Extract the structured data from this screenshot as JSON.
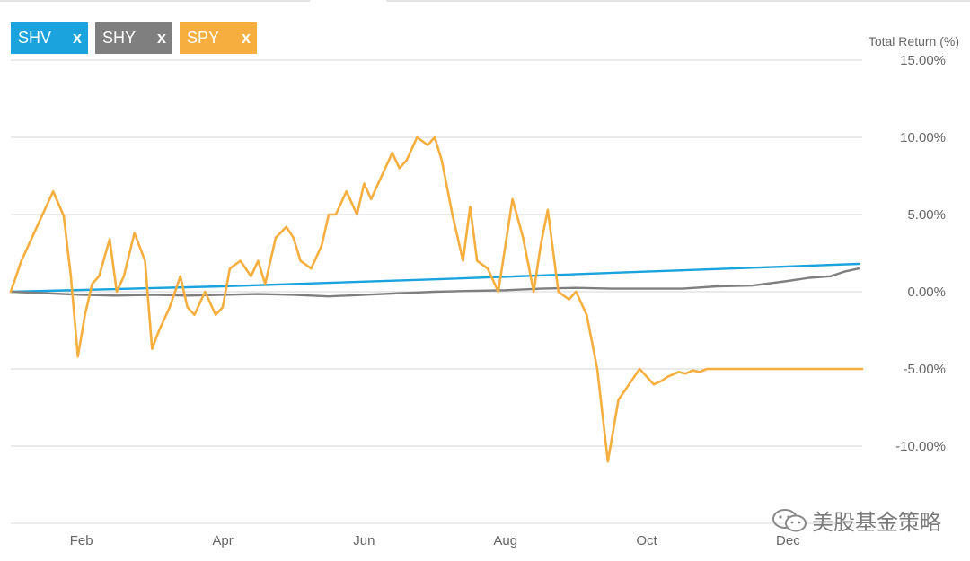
{
  "legend": [
    {
      "label": "SHV",
      "remove": "x",
      "color": "#1aa3dd"
    },
    {
      "label": "SHY",
      "remove": "x",
      "color": "#7f7f7f"
    },
    {
      "label": "SPY",
      "remove": "x",
      "color": "#f6ae3f"
    }
  ],
  "watermark": "美股基金策略",
  "chart_data": {
    "type": "line",
    "ylabel": "Total Return (%)",
    "ylim": [
      -15,
      15
    ],
    "y_ticks": [
      15,
      10,
      5,
      0,
      -5,
      -10
    ],
    "y_tick_labels": [
      "15.00%",
      "10.00%",
      "5.00%",
      "0.00%",
      "-5.00%",
      "-10.00%"
    ],
    "x_ticks": [
      1.0,
      3.0,
      5.0,
      7.0,
      9.0,
      11.0
    ],
    "x_tick_labels": [
      "Feb",
      "Apr",
      "Jun",
      "Aug",
      "Oct",
      "Dec"
    ],
    "xlim": [
      0,
      12.05
    ],
    "grid": true,
    "legend_position": "top-left",
    "series": [
      {
        "name": "SHV",
        "color": "#1aa3dd",
        "x": [
          0,
          3,
          6,
          9,
          12
        ],
        "y": [
          0.0,
          0.35,
          0.8,
          1.3,
          1.8
        ]
      },
      {
        "name": "SHY",
        "color": "#7f7f7f",
        "x": [
          0,
          0.5,
          1.0,
          1.5,
          2.0,
          2.5,
          3.0,
          3.5,
          4.0,
          4.5,
          5.0,
          5.5,
          6.0,
          6.5,
          7.0,
          7.5,
          8.0,
          8.5,
          9.0,
          9.5,
          10.0,
          10.5,
          11.0,
          11.3,
          11.6,
          11.8,
          12.0
        ],
        "y": [
          0.0,
          -0.1,
          -0.2,
          -0.25,
          -0.2,
          -0.25,
          -0.2,
          -0.15,
          -0.2,
          -0.3,
          -0.2,
          -0.1,
          0.0,
          0.05,
          0.1,
          0.2,
          0.25,
          0.2,
          0.2,
          0.2,
          0.35,
          0.4,
          0.7,
          0.9,
          1.0,
          1.3,
          1.5
        ]
      },
      {
        "name": "SPY",
        "color": "#f6ae3f",
        "x": [
          0.0,
          0.15,
          0.3,
          0.45,
          0.6,
          0.75,
          0.85,
          0.95,
          1.05,
          1.15,
          1.25,
          1.4,
          1.5,
          1.6,
          1.75,
          1.9,
          2.0,
          2.1,
          2.25,
          2.4,
          2.5,
          2.6,
          2.75,
          2.9,
          3.0,
          3.1,
          3.25,
          3.4,
          3.5,
          3.6,
          3.75,
          3.9,
          4.0,
          4.1,
          4.25,
          4.4,
          4.5,
          4.6,
          4.75,
          4.9,
          5.0,
          5.1,
          5.25,
          5.4,
          5.5,
          5.6,
          5.75,
          5.9,
          6.0,
          6.1,
          6.25,
          6.4,
          6.5,
          6.6,
          6.75,
          6.9,
          7.0,
          7.1,
          7.25,
          7.4,
          7.5,
          7.6,
          7.75,
          7.9,
          8.0,
          8.15,
          8.3,
          8.45,
          8.6,
          8.75,
          8.9,
          9.0,
          9.1,
          9.2,
          9.3,
          9.45,
          9.55,
          9.65,
          9.75,
          9.85,
          9.95,
          10.05,
          10.15,
          10.25,
          10.35,
          10.45,
          10.55,
          10.65,
          10.75,
          10.85,
          10.95,
          11.05,
          11.15,
          11.25,
          11.35,
          11.45,
          11.55,
          11.65,
          11.75,
          11.85,
          11.95,
          12.05
        ],
        "y": [
          0.0,
          2.0,
          3.5,
          5.0,
          6.5,
          4.9,
          1.0,
          -4.2,
          -1.5,
          0.5,
          1.0,
          3.4,
          0.0,
          1.0,
          3.8,
          2.0,
          -3.7,
          -2.5,
          -1.0,
          1.0,
          -1.0,
          -1.5,
          0.0,
          -1.5,
          -1.0,
          1.5,
          2.0,
          1.0,
          2.0,
          0.5,
          3.5,
          4.2,
          3.5,
          2.0,
          1.5,
          3.0,
          5.0,
          5.0,
          6.5,
          5.0,
          7.0,
          6.0,
          7.5,
          9.0,
          8.0,
          8.5,
          10.0,
          9.5,
          10.0,
          8.5,
          5.0,
          2.0,
          5.5,
          2.0,
          1.5,
          0.0,
          3.0,
          6.0,
          3.5,
          0.0,
          3.0,
          5.3,
          0.0,
          -0.5,
          0.0,
          -1.5,
          -5.0,
          -11.0,
          -7.0,
          -6.0,
          -5.0,
          -5.5,
          -6.0,
          -5.8,
          -5.5,
          -5.2,
          -5.3,
          -5.1,
          -5.2,
          -5.0,
          -5.0,
          -5.0,
          -5.0,
          -5.0,
          -5.0,
          -5.0,
          -5.0,
          -5.0,
          -5.0,
          -5.0,
          -5.0,
          -5.0,
          -5.0,
          -5.0,
          -5.0,
          -5.0,
          -5.0,
          -5.0,
          -5.0,
          -5.0,
          -5.0,
          -5.0
        ]
      }
    ]
  }
}
